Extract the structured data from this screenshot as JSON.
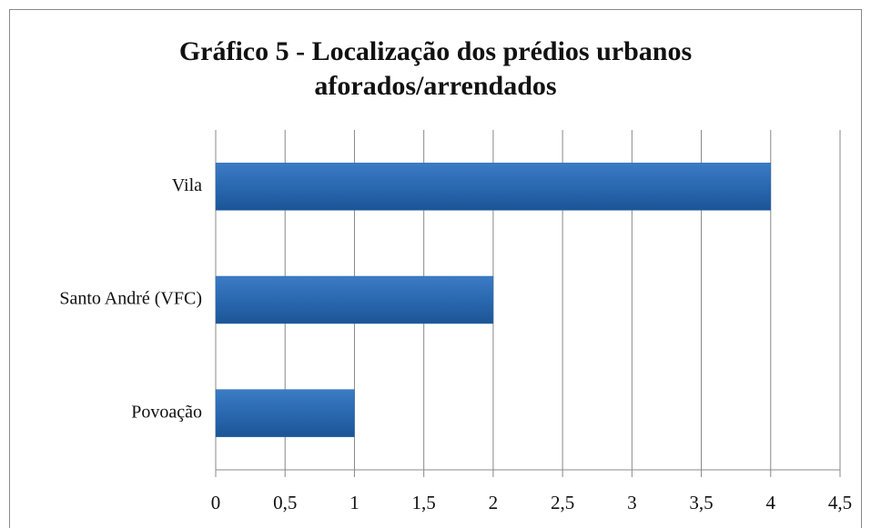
{
  "chart_data": {
    "type": "hbar",
    "title": "Gráfico 5 - Localização dos prédios urbanos aforados/arrendados",
    "categories": [
      "Vila",
      "Santo André (VFC)",
      "Povoação"
    ],
    "values": [
      4,
      2,
      1
    ],
    "color": "#2a68b0",
    "xlim": [
      0,
      4.5
    ],
    "xticks": [
      0,
      {
        "value": 0.5,
        "label": "0,5"
      },
      1,
      {
        "value": 1.5,
        "label": "1,5"
      },
      2,
      {
        "value": 2.5,
        "label": "2,5"
      },
      3,
      {
        "value": 3.5,
        "label": "3,5"
      },
      4,
      {
        "value": 4.5,
        "label": "4,5"
      }
    ],
    "grid": true
  }
}
